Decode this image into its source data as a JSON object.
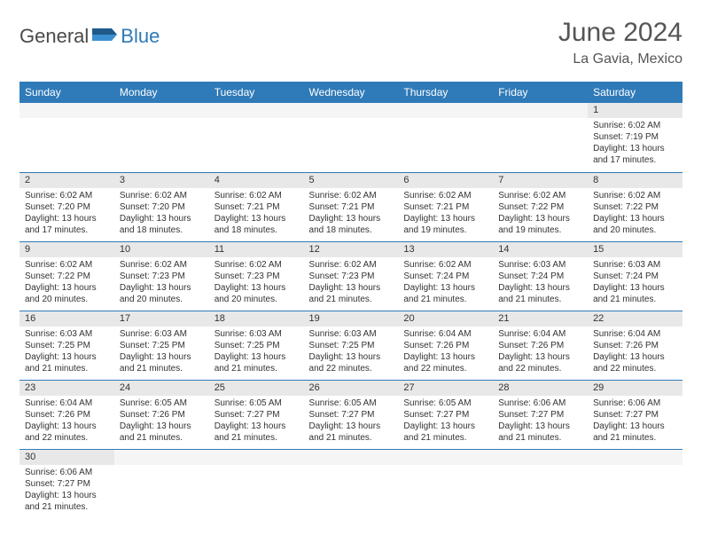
{
  "brand": {
    "part1": "General",
    "part2": "Blue"
  },
  "title": "June 2024",
  "location": "La Gavia, Mexico",
  "colors": {
    "header_bg": "#2f7ab8",
    "header_fg": "#ffffff",
    "daynum_bg": "#e8e8e8",
    "border": "#2f7ab8",
    "logo_blue": "#2f7ab8",
    "text": "#333333"
  },
  "day_headers": [
    "Sunday",
    "Monday",
    "Tuesday",
    "Wednesday",
    "Thursday",
    "Friday",
    "Saturday"
  ],
  "weeks": [
    [
      null,
      null,
      null,
      null,
      null,
      null,
      {
        "n": "1",
        "sr": "Sunrise: 6:02 AM",
        "ss": "Sunset: 7:19 PM",
        "d1": "Daylight: 13 hours",
        "d2": "and 17 minutes."
      }
    ],
    [
      {
        "n": "2",
        "sr": "Sunrise: 6:02 AM",
        "ss": "Sunset: 7:20 PM",
        "d1": "Daylight: 13 hours",
        "d2": "and 17 minutes."
      },
      {
        "n": "3",
        "sr": "Sunrise: 6:02 AM",
        "ss": "Sunset: 7:20 PM",
        "d1": "Daylight: 13 hours",
        "d2": "and 18 minutes."
      },
      {
        "n": "4",
        "sr": "Sunrise: 6:02 AM",
        "ss": "Sunset: 7:21 PM",
        "d1": "Daylight: 13 hours",
        "d2": "and 18 minutes."
      },
      {
        "n": "5",
        "sr": "Sunrise: 6:02 AM",
        "ss": "Sunset: 7:21 PM",
        "d1": "Daylight: 13 hours",
        "d2": "and 18 minutes."
      },
      {
        "n": "6",
        "sr": "Sunrise: 6:02 AM",
        "ss": "Sunset: 7:21 PM",
        "d1": "Daylight: 13 hours",
        "d2": "and 19 minutes."
      },
      {
        "n": "7",
        "sr": "Sunrise: 6:02 AM",
        "ss": "Sunset: 7:22 PM",
        "d1": "Daylight: 13 hours",
        "d2": "and 19 minutes."
      },
      {
        "n": "8",
        "sr": "Sunrise: 6:02 AM",
        "ss": "Sunset: 7:22 PM",
        "d1": "Daylight: 13 hours",
        "d2": "and 20 minutes."
      }
    ],
    [
      {
        "n": "9",
        "sr": "Sunrise: 6:02 AM",
        "ss": "Sunset: 7:22 PM",
        "d1": "Daylight: 13 hours",
        "d2": "and 20 minutes."
      },
      {
        "n": "10",
        "sr": "Sunrise: 6:02 AM",
        "ss": "Sunset: 7:23 PM",
        "d1": "Daylight: 13 hours",
        "d2": "and 20 minutes."
      },
      {
        "n": "11",
        "sr": "Sunrise: 6:02 AM",
        "ss": "Sunset: 7:23 PM",
        "d1": "Daylight: 13 hours",
        "d2": "and 20 minutes."
      },
      {
        "n": "12",
        "sr": "Sunrise: 6:02 AM",
        "ss": "Sunset: 7:23 PM",
        "d1": "Daylight: 13 hours",
        "d2": "and 21 minutes."
      },
      {
        "n": "13",
        "sr": "Sunrise: 6:02 AM",
        "ss": "Sunset: 7:24 PM",
        "d1": "Daylight: 13 hours",
        "d2": "and 21 minutes."
      },
      {
        "n": "14",
        "sr": "Sunrise: 6:03 AM",
        "ss": "Sunset: 7:24 PM",
        "d1": "Daylight: 13 hours",
        "d2": "and 21 minutes."
      },
      {
        "n": "15",
        "sr": "Sunrise: 6:03 AM",
        "ss": "Sunset: 7:24 PM",
        "d1": "Daylight: 13 hours",
        "d2": "and 21 minutes."
      }
    ],
    [
      {
        "n": "16",
        "sr": "Sunrise: 6:03 AM",
        "ss": "Sunset: 7:25 PM",
        "d1": "Daylight: 13 hours",
        "d2": "and 21 minutes."
      },
      {
        "n": "17",
        "sr": "Sunrise: 6:03 AM",
        "ss": "Sunset: 7:25 PM",
        "d1": "Daylight: 13 hours",
        "d2": "and 21 minutes."
      },
      {
        "n": "18",
        "sr": "Sunrise: 6:03 AM",
        "ss": "Sunset: 7:25 PM",
        "d1": "Daylight: 13 hours",
        "d2": "and 21 minutes."
      },
      {
        "n": "19",
        "sr": "Sunrise: 6:03 AM",
        "ss": "Sunset: 7:25 PM",
        "d1": "Daylight: 13 hours",
        "d2": "and 22 minutes."
      },
      {
        "n": "20",
        "sr": "Sunrise: 6:04 AM",
        "ss": "Sunset: 7:26 PM",
        "d1": "Daylight: 13 hours",
        "d2": "and 22 minutes."
      },
      {
        "n": "21",
        "sr": "Sunrise: 6:04 AM",
        "ss": "Sunset: 7:26 PM",
        "d1": "Daylight: 13 hours",
        "d2": "and 22 minutes."
      },
      {
        "n": "22",
        "sr": "Sunrise: 6:04 AM",
        "ss": "Sunset: 7:26 PM",
        "d1": "Daylight: 13 hours",
        "d2": "and 22 minutes."
      }
    ],
    [
      {
        "n": "23",
        "sr": "Sunrise: 6:04 AM",
        "ss": "Sunset: 7:26 PM",
        "d1": "Daylight: 13 hours",
        "d2": "and 22 minutes."
      },
      {
        "n": "24",
        "sr": "Sunrise: 6:05 AM",
        "ss": "Sunset: 7:26 PM",
        "d1": "Daylight: 13 hours",
        "d2": "and 21 minutes."
      },
      {
        "n": "25",
        "sr": "Sunrise: 6:05 AM",
        "ss": "Sunset: 7:27 PM",
        "d1": "Daylight: 13 hours",
        "d2": "and 21 minutes."
      },
      {
        "n": "26",
        "sr": "Sunrise: 6:05 AM",
        "ss": "Sunset: 7:27 PM",
        "d1": "Daylight: 13 hours",
        "d2": "and 21 minutes."
      },
      {
        "n": "27",
        "sr": "Sunrise: 6:05 AM",
        "ss": "Sunset: 7:27 PM",
        "d1": "Daylight: 13 hours",
        "d2": "and 21 minutes."
      },
      {
        "n": "28",
        "sr": "Sunrise: 6:06 AM",
        "ss": "Sunset: 7:27 PM",
        "d1": "Daylight: 13 hours",
        "d2": "and 21 minutes."
      },
      {
        "n": "29",
        "sr": "Sunrise: 6:06 AM",
        "ss": "Sunset: 7:27 PM",
        "d1": "Daylight: 13 hours",
        "d2": "and 21 minutes."
      }
    ],
    [
      {
        "n": "30",
        "sr": "Sunrise: 6:06 AM",
        "ss": "Sunset: 7:27 PM",
        "d1": "Daylight: 13 hours",
        "d2": "and 21 minutes."
      },
      null,
      null,
      null,
      null,
      null,
      null
    ]
  ]
}
